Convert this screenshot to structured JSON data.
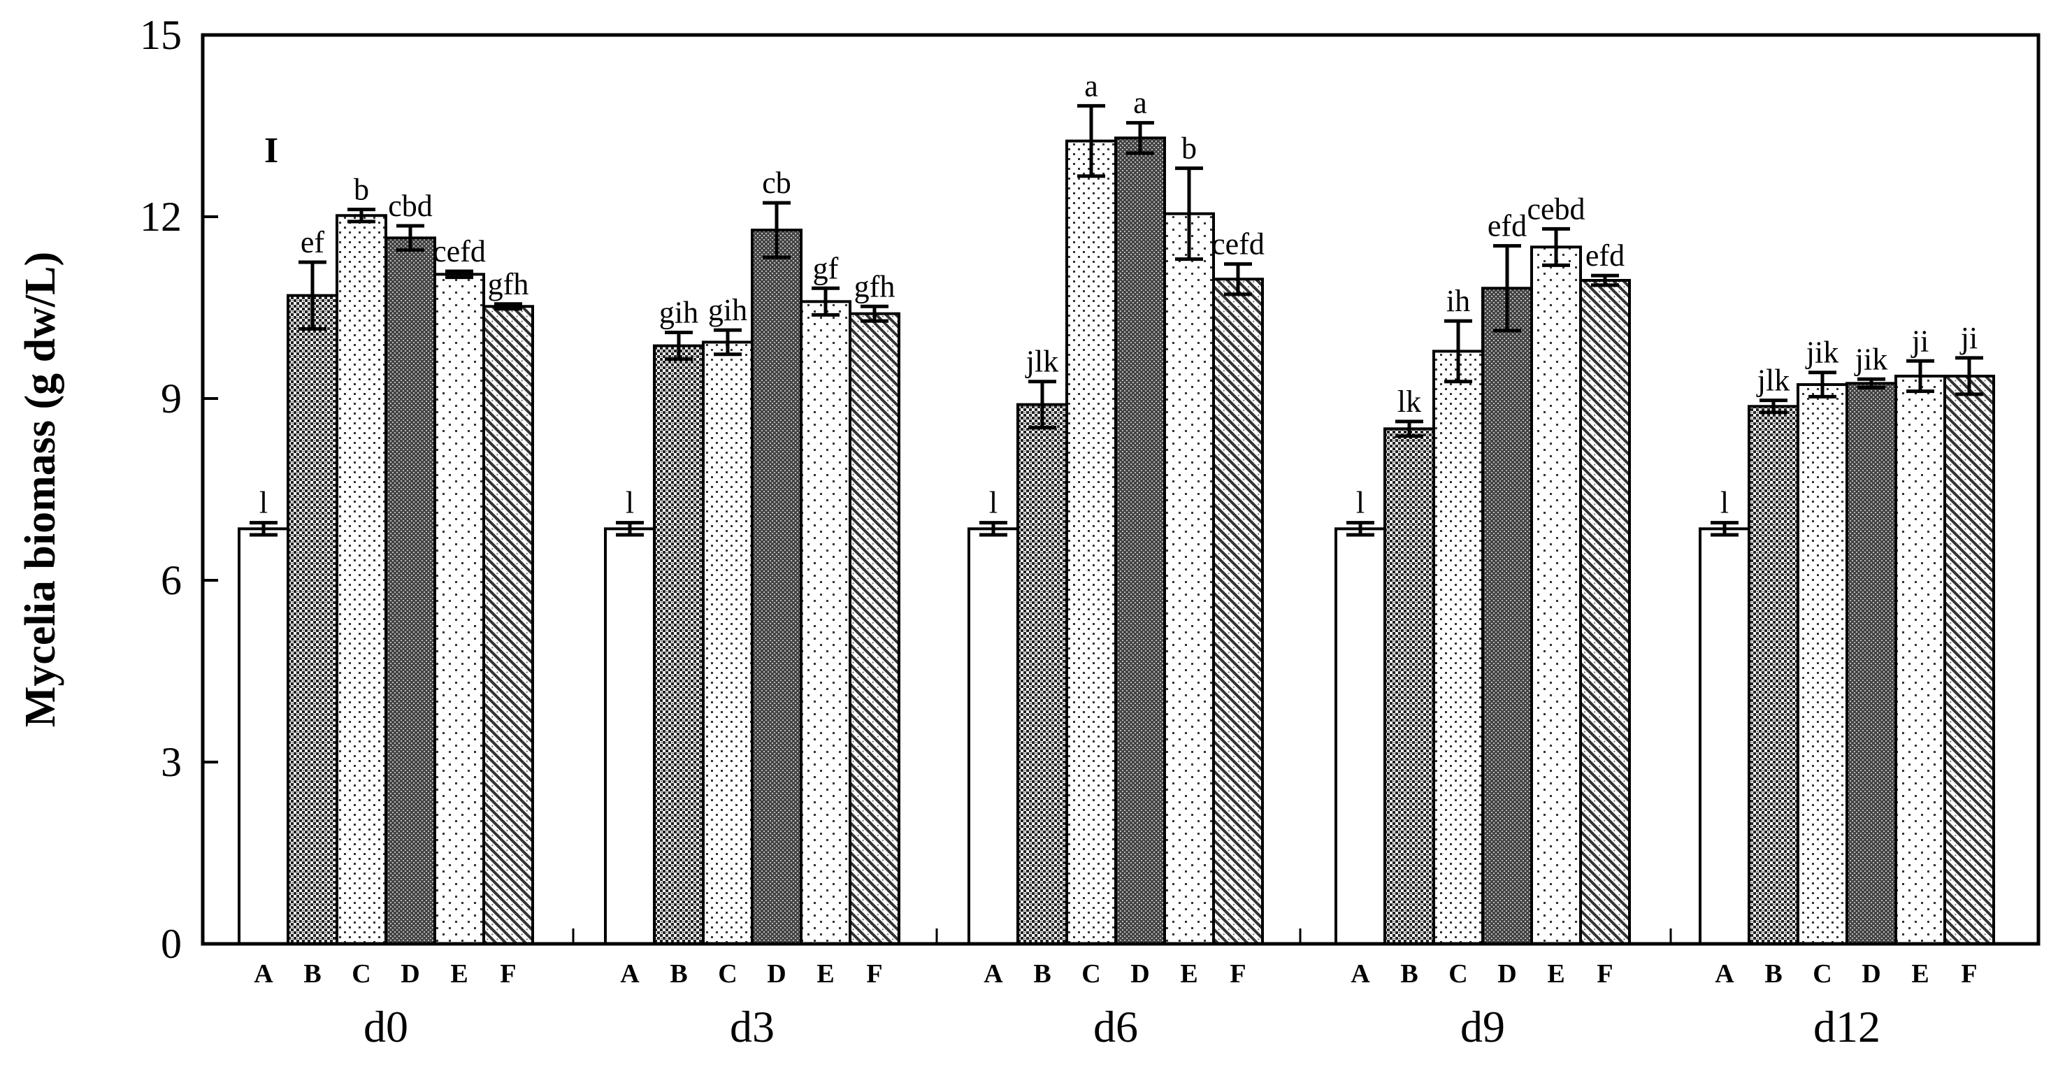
{
  "chart_data": {
    "type": "bar",
    "panel_label": "I",
    "ylabel": "Mycelia biomass (g dw/L)",
    "ylim": [
      0,
      15
    ],
    "yticks": [
      "0",
      "3",
      "6",
      "9",
      "12",
      "15"
    ],
    "groups": [
      "d0",
      "d3",
      "d6",
      "d9",
      "d12"
    ],
    "categories": [
      "A",
      "B",
      "C",
      "D",
      "E",
      "F"
    ],
    "series": [
      {
        "group": "d0",
        "values": [
          6.85,
          10.7,
          12.02,
          11.65,
          11.05,
          10.52
        ],
        "errors": [
          0.1,
          0.55,
          0.1,
          0.2,
          0.05,
          0.04
        ],
        "labels": [
          "l",
          "ef",
          "b",
          "cbd",
          "cefd",
          "gfh"
        ]
      },
      {
        "group": "d3",
        "values": [
          6.85,
          9.87,
          9.93,
          11.78,
          10.6,
          10.4
        ],
        "errors": [
          0.1,
          0.22,
          0.2,
          0.45,
          0.22,
          0.12
        ],
        "labels": [
          "l",
          "gih",
          "gih",
          "cb",
          "gf",
          "gfh"
        ]
      },
      {
        "group": "d6",
        "values": [
          6.85,
          8.9,
          13.25,
          13.3,
          12.05,
          10.97
        ],
        "errors": [
          0.1,
          0.38,
          0.58,
          0.25,
          0.75,
          0.25
        ],
        "labels": [
          "l",
          "jlk",
          "a",
          "a",
          "b",
          "cefd"
        ]
      },
      {
        "group": "d9",
        "values": [
          6.85,
          8.5,
          9.78,
          10.82,
          11.5,
          10.95
        ],
        "errors": [
          0.1,
          0.12,
          0.5,
          0.7,
          0.3,
          0.08
        ],
        "labels": [
          "l",
          "lk",
          "ih",
          "efd",
          "cebd",
          "efd"
        ]
      },
      {
        "group": "d12",
        "values": [
          6.85,
          8.87,
          9.23,
          9.25,
          9.37,
          9.37
        ],
        "errors": [
          0.1,
          0.1,
          0.2,
          0.07,
          0.25,
          0.3
        ],
        "labels": [
          "l",
          "jlk",
          "jik",
          "jik",
          "ji",
          "ji"
        ]
      }
    ]
  }
}
